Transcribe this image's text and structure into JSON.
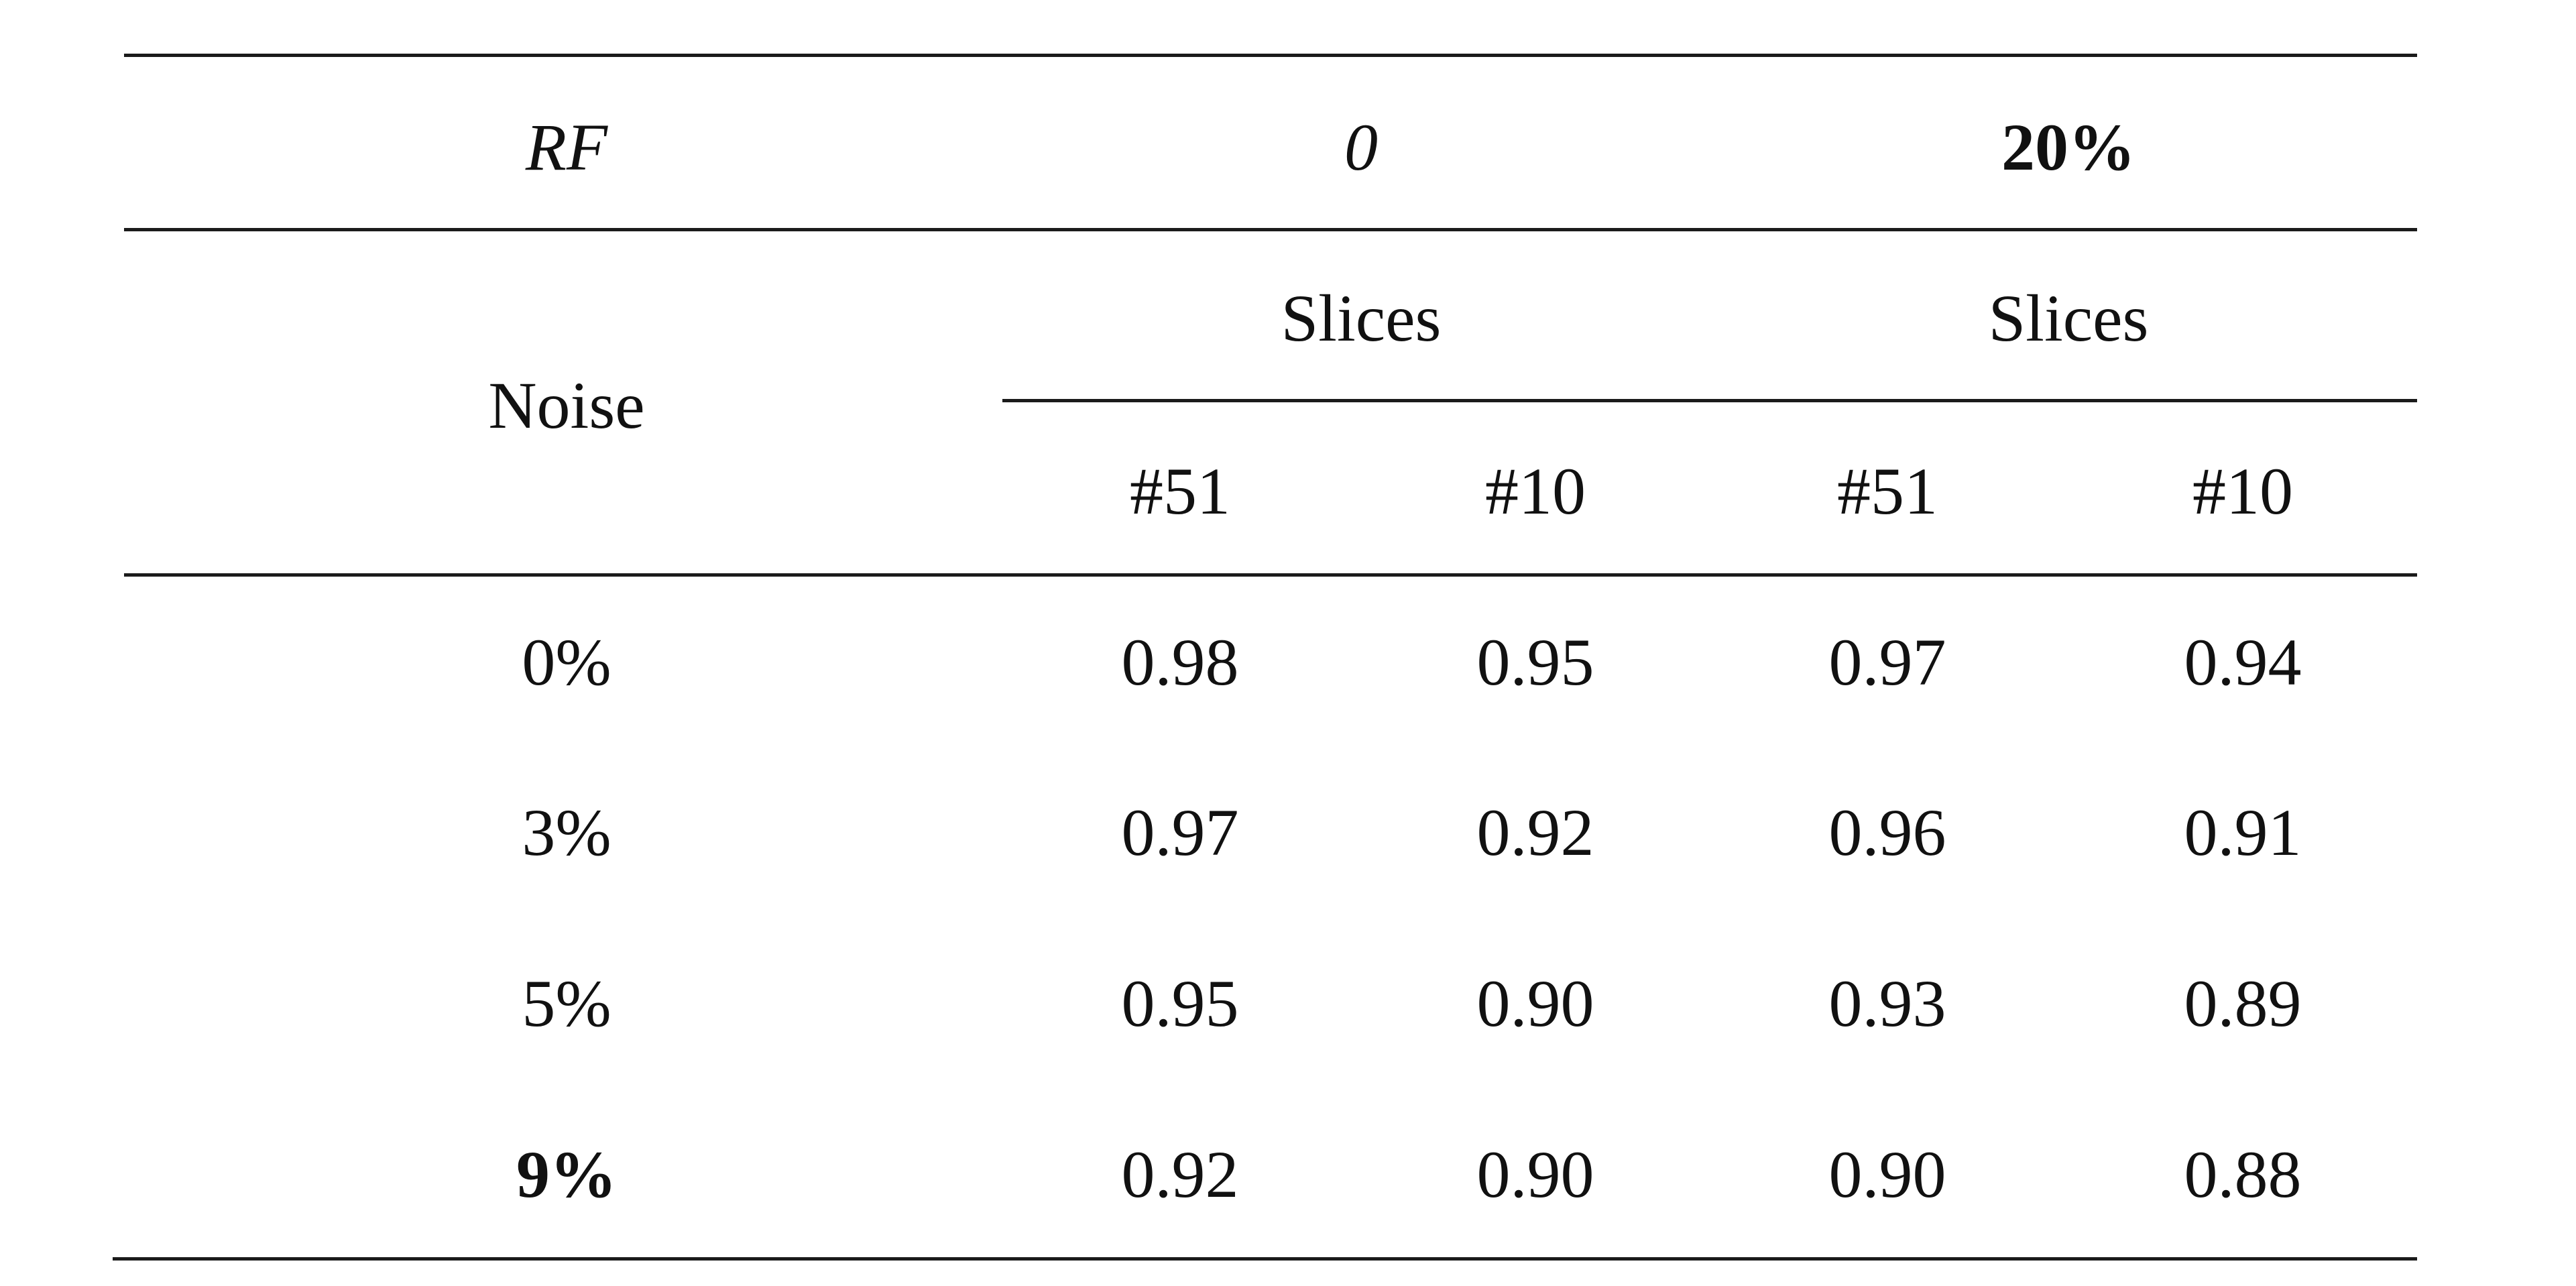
{
  "table": {
    "header": {
      "rf_label": "RF",
      "rf_values": [
        "0",
        "20%"
      ],
      "noise_label": "Noise",
      "slices_label": "Slices",
      "slice_columns": [
        "#51",
        "#10",
        "#51",
        "#10"
      ]
    },
    "rows": [
      {
        "noise": "0%",
        "values": [
          "0.98",
          "0.95",
          "0.97",
          "0.94"
        ]
      },
      {
        "noise": "3%",
        "values": [
          "0.97",
          "0.92",
          "0.96",
          "0.91"
        ]
      },
      {
        "noise": "5%",
        "values": [
          "0.95",
          "0.90",
          "0.93",
          "0.89"
        ]
      },
      {
        "noise": "9%",
        "values": [
          "0.92",
          "0.90",
          "0.90",
          "0.88"
        ]
      }
    ]
  }
}
